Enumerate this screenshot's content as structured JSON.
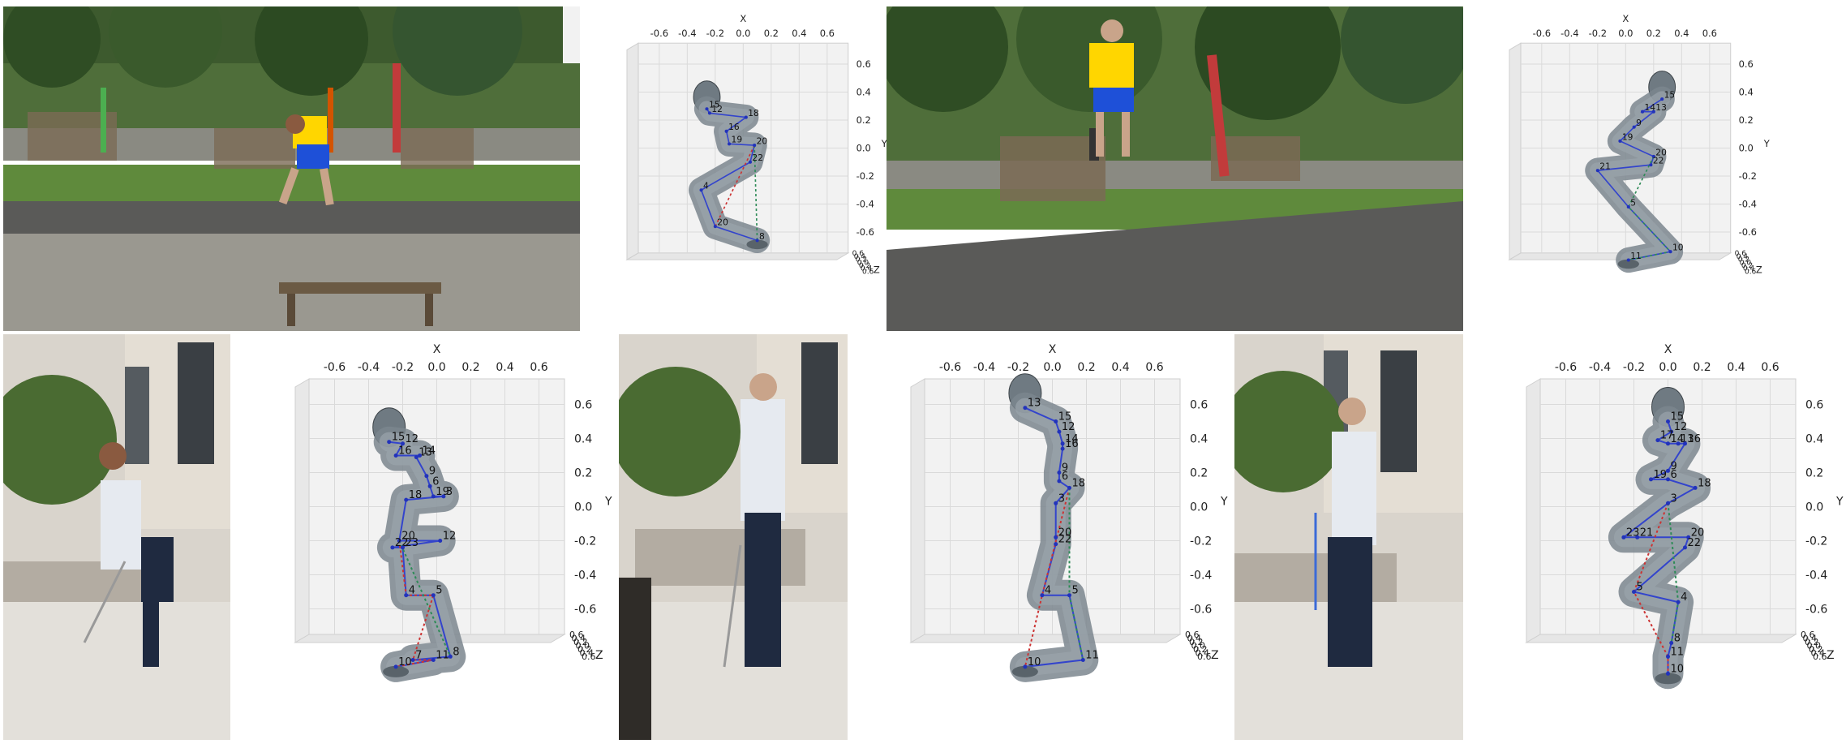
{
  "panels": [
    {
      "photo": {
        "scene": "outdoor-park",
        "person": "yellow-blue"
      },
      "plot": {
        "axis_x_label": "X",
        "axis_y_label": "Y",
        "axis_z_label": "Z",
        "x_ticks": [
          "-0.6",
          "-0.4",
          "-0.2",
          "0.0",
          "0.2",
          "0.4",
          "0.6"
        ],
        "y_ticks": [
          "0.6",
          "0.4",
          "0.2",
          "0.0",
          "-0.2",
          "-0.4",
          "-0.6"
        ],
        "z_ticks": [
          "0.6",
          "0.4",
          "0.2",
          "0.0",
          "0.2",
          "0.4",
          "0.6"
        ],
        "pose": "crouch-left",
        "joints": [
          {
            "label": "15",
            "x": -0.26,
            "y": 0.28
          },
          {
            "label": "12",
            "x": -0.24,
            "y": 0.25
          },
          {
            "label": "18",
            "x": 0.02,
            "y": 0.22
          },
          {
            "label": "16",
            "x": -0.12,
            "y": 0.12
          },
          {
            "label": "19",
            "x": -0.1,
            "y": 0.03
          },
          {
            "label": "20",
            "x": 0.08,
            "y": 0.02
          },
          {
            "label": "22",
            "x": 0.05,
            "y": -0.1
          },
          {
            "label": "4",
            "x": -0.3,
            "y": -0.3
          },
          {
            "label": "20",
            "x": -0.2,
            "y": -0.56
          },
          {
            "label": "8",
            "x": 0.1,
            "y": -0.66
          }
        ]
      }
    },
    {
      "photo": {
        "scene": "outdoor-park",
        "person": "yellow-blue"
      },
      "plot": {
        "axis_x_label": "X",
        "axis_y_label": "Y",
        "axis_z_label": "Z",
        "x_ticks": [
          "-0.6",
          "-0.4",
          "-0.2",
          "0.0",
          "0.2",
          "0.4",
          "0.6"
        ],
        "y_ticks": [
          "0.6",
          "0.4",
          "0.2",
          "0.0",
          "-0.2",
          "-0.4",
          "-0.6"
        ],
        "z_ticks": [
          "0.6",
          "0.4",
          "0.2",
          "0.0",
          "0.2",
          "0.4",
          "0.6"
        ],
        "pose": "stand-lean",
        "joints": [
          {
            "label": "15",
            "x": 0.26,
            "y": 0.35
          },
          {
            "label": "14",
            "x": 0.12,
            "y": 0.26
          },
          {
            "label": "13",
            "x": 0.2,
            "y": 0.26
          },
          {
            "label": "9",
            "x": 0.06,
            "y": 0.15
          },
          {
            "label": "19",
            "x": -0.04,
            "y": 0.05
          },
          {
            "label": "20",
            "x": 0.2,
            "y": -0.06
          },
          {
            "label": "21",
            "x": -0.2,
            "y": -0.16
          },
          {
            "label": "22",
            "x": 0.18,
            "y": -0.12
          },
          {
            "label": "5",
            "x": 0.02,
            "y": -0.42
          },
          {
            "label": "10",
            "x": 0.32,
            "y": -0.74
          },
          {
            "label": "11",
            "x": 0.02,
            "y": -0.8
          }
        ]
      }
    },
    {
      "photo": {
        "scene": "courtyard",
        "person": "white-shirt"
      },
      "plot": {
        "axis_x_label": "X",
        "axis_y_label": "Y",
        "axis_z_label": "Z",
        "x_ticks": [
          "-0.6",
          "-0.4",
          "-0.2",
          "0.0",
          "0.2",
          "0.4",
          "0.6"
        ],
        "y_ticks": [
          "0.6",
          "0.4",
          "0.2",
          "0.0",
          "-0.2",
          "-0.4",
          "-0.6"
        ],
        "z_ticks": [
          "0.6",
          "0.4",
          "0.2",
          "0.0",
          "0.2",
          "0.4",
          "0.6"
        ],
        "pose": "bend-forward",
        "joints": [
          {
            "label": "15",
            "x": -0.28,
            "y": 0.38
          },
          {
            "label": "12",
            "x": -0.2,
            "y": 0.37
          },
          {
            "label": "16",
            "x": -0.24,
            "y": 0.3
          },
          {
            "label": "13",
            "x": -0.12,
            "y": 0.29
          },
          {
            "label": "14",
            "x": -0.1,
            "y": 0.3
          },
          {
            "label": "9",
            "x": -0.06,
            "y": 0.18
          },
          {
            "label": "6",
            "x": -0.04,
            "y": 0.12
          },
          {
            "label": "18",
            "x": -0.18,
            "y": 0.04
          },
          {
            "label": "19",
            "x": -0.02,
            "y": 0.06
          },
          {
            "label": "3",
            "x": 0.04,
            "y": 0.06
          },
          {
            "label": "20",
            "x": -0.22,
            "y": -0.2
          },
          {
            "label": "12",
            "x": 0.02,
            "y": -0.2
          },
          {
            "label": "22",
            "x": -0.26,
            "y": -0.24
          },
          {
            "label": "23",
            "x": -0.2,
            "y": -0.24
          },
          {
            "label": "4",
            "x": -0.18,
            "y": -0.52
          },
          {
            "label": "5",
            "x": -0.02,
            "y": -0.52
          },
          {
            "label": "10",
            "x": -0.24,
            "y": -0.94
          },
          {
            "label": "7",
            "x": -0.14,
            "y": -0.9
          },
          {
            "label": "11",
            "x": -0.02,
            "y": -0.9
          },
          {
            "label": "8",
            "x": 0.08,
            "y": -0.88
          }
        ]
      }
    },
    {
      "photo": {
        "scene": "courtyard",
        "person": "white-shirt"
      },
      "plot": {
        "axis_x_label": "X",
        "axis_y_label": "Y",
        "axis_z_label": "Z",
        "x_ticks": [
          "-0.6",
          "-0.4",
          "-0.2",
          "0.0",
          "0.2",
          "0.4",
          "0.6"
        ],
        "y_ticks": [
          "0.6",
          "0.4",
          "0.2",
          "0.0",
          "-0.2",
          "-0.4",
          "-0.6"
        ],
        "z_ticks": [
          "0.6",
          "0.4",
          "0.2",
          "0.0",
          "0.2",
          "0.4",
          "0.6"
        ],
        "pose": "stand-salute",
        "joints": [
          {
            "label": "13",
            "x": -0.16,
            "y": 0.58
          },
          {
            "label": "15",
            "x": 0.02,
            "y": 0.5
          },
          {
            "label": "12",
            "x": 0.04,
            "y": 0.44
          },
          {
            "label": "14",
            "x": 0.06,
            "y": 0.37
          },
          {
            "label": "16",
            "x": 0.06,
            "y": 0.34
          },
          {
            "label": "9",
            "x": 0.04,
            "y": 0.2
          },
          {
            "label": "6",
            "x": 0.04,
            "y": 0.15
          },
          {
            "label": "18",
            "x": 0.1,
            "y": 0.11
          },
          {
            "label": "3",
            "x": 0.02,
            "y": 0.02
          },
          {
            "label": "20",
            "x": 0.02,
            "y": -0.18
          },
          {
            "label": "22",
            "x": 0.02,
            "y": -0.22
          },
          {
            "label": "4",
            "x": -0.06,
            "y": -0.52
          },
          {
            "label": "5",
            "x": 0.1,
            "y": -0.52
          },
          {
            "label": "10",
            "x": -0.16,
            "y": -0.94
          },
          {
            "label": "11",
            "x": 0.18,
            "y": -0.9
          }
        ]
      }
    },
    {
      "photo": {
        "scene": "courtyard",
        "person": "white-shirt"
      },
      "plot": {
        "axis_x_label": "X",
        "axis_y_label": "Y",
        "axis_z_label": "Z",
        "x_ticks": [
          "-0.6",
          "-0.4",
          "-0.2",
          "0.0",
          "0.2",
          "0.4",
          "0.6"
        ],
        "y_ticks": [
          "0.6",
          "0.4",
          "0.2",
          "0.0",
          "-0.2",
          "-0.4",
          "-0.6"
        ],
        "z_ticks": [
          "0.6",
          "0.4",
          "0.2",
          "0.0",
          "0.2",
          "0.4",
          "0.6"
        ],
        "pose": "walk",
        "joints": [
          {
            "label": "15",
            "x": 0.0,
            "y": 0.5
          },
          {
            "label": "12",
            "x": 0.02,
            "y": 0.44
          },
          {
            "label": "17",
            "x": -0.06,
            "y": 0.39
          },
          {
            "label": "14",
            "x": 0.0,
            "y": 0.37
          },
          {
            "label": "13",
            "x": 0.06,
            "y": 0.37
          },
          {
            "label": "16",
            "x": 0.1,
            "y": 0.37
          },
          {
            "label": "9",
            "x": 0.0,
            "y": 0.21
          },
          {
            "label": "19",
            "x": -0.1,
            "y": 0.16
          },
          {
            "label": "6",
            "x": 0.0,
            "y": 0.16
          },
          {
            "label": "18",
            "x": 0.16,
            "y": 0.11
          },
          {
            "label": "3",
            "x": 0.0,
            "y": 0.02
          },
          {
            "label": "23",
            "x": -0.26,
            "y": -0.18
          },
          {
            "label": "21",
            "x": -0.18,
            "y": -0.18
          },
          {
            "label": "20",
            "x": 0.12,
            "y": -0.18
          },
          {
            "label": "22",
            "x": 0.1,
            "y": -0.24
          },
          {
            "label": "5",
            "x": -0.2,
            "y": -0.5
          },
          {
            "label": "4",
            "x": 0.06,
            "y": -0.56
          },
          {
            "label": "8",
            "x": 0.02,
            "y": -0.8
          },
          {
            "label": "11",
            "x": 0.0,
            "y": -0.88
          },
          {
            "label": "10",
            "x": 0.0,
            "y": -0.98
          }
        ]
      }
    }
  ]
}
